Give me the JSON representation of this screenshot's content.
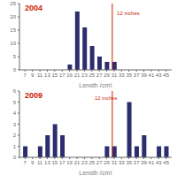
{
  "chart_data": [
    {
      "type": "bar",
      "title": "2004",
      "xlabel": "Length (cm)",
      "x": [
        7,
        9,
        11,
        13,
        15,
        17,
        19,
        21,
        23,
        25,
        27,
        29,
        31,
        33,
        35,
        37,
        39,
        41,
        43,
        45
      ],
      "values": [
        0,
        0,
        0,
        0,
        0,
        0,
        2,
        22,
        16,
        9,
        5,
        3,
        3,
        0,
        0,
        0,
        0,
        0,
        0,
        0
      ],
      "color": "#2b2d6e",
      "xlim": [
        5.5,
        46.5
      ],
      "xticks": [
        7,
        9,
        11,
        13,
        15,
        17,
        19,
        21,
        23,
        25,
        27,
        29,
        31,
        33,
        35,
        37,
        39,
        41,
        43,
        45
      ],
      "ylim": [
        0,
        25
      ],
      "yticks": [
        0,
        5,
        10,
        15,
        20,
        25
      ],
      "annotations": [
        {
          "text": "12 inches",
          "x": 31.5,
          "y": 22,
          "line_x": 30.5,
          "color": "#cc2200"
        }
      ],
      "grid": false
    },
    {
      "type": "bar",
      "title": "2009",
      "xlabel": "Length (cm)",
      "x": [
        7,
        9,
        11,
        13,
        15,
        17,
        19,
        21,
        23,
        25,
        27,
        29,
        31,
        33,
        35,
        37,
        39,
        41,
        43,
        45
      ],
      "values": [
        1,
        0,
        1,
        2,
        3,
        2,
        0,
        0,
        0,
        0,
        0,
        1,
        1,
        0,
        5,
        1,
        2,
        0,
        1,
        1
      ],
      "color": "#2b2d6e",
      "xlim": [
        5.5,
        46.5
      ],
      "xticks": [
        7,
        9,
        11,
        13,
        15,
        17,
        19,
        21,
        23,
        25,
        27,
        29,
        31,
        33,
        35,
        37,
        39,
        41,
        43,
        45
      ],
      "ylim": [
        0,
        6
      ],
      "yticks": [
        0,
        1,
        2,
        3,
        4,
        5,
        6
      ],
      "annotations": [
        {
          "text": "12 inches",
          "x": 25.5,
          "y": 5.5,
          "line_x": 30.5,
          "color": "#cc2200"
        }
      ],
      "grid": false
    }
  ]
}
